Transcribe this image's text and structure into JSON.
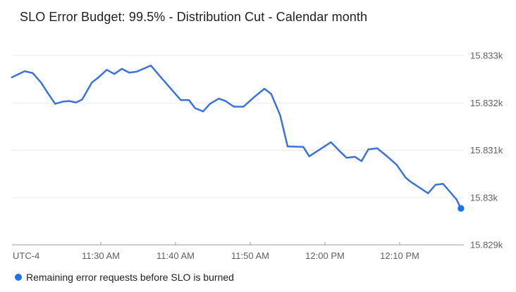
{
  "title": "SLO Error Budget: 99.5% - Distribution Cut - Calendar month",
  "legend": {
    "label": "Remaining error requests before SLO is burned",
    "marker_color": "#1A73E8"
  },
  "colors": {
    "line": "#3B72DB",
    "endpoint_dot": "#1A73E8",
    "gridline": "#EBEBEB",
    "axis_line": "#9AA0A6",
    "axis_text": "#616161",
    "title_text": "#212121",
    "legend_text": "#212121",
    "background": "#FFFFFF"
  },
  "chart_data": {
    "type": "line",
    "title": "SLO Error Budget: 99.5% - Distribution Cut - Calendar month",
    "xlabel": "",
    "ylabel": "",
    "timezone_label": "UTC-4",
    "x_unit": "minutes since 11:00 AM",
    "x_range": [
      18.0,
      78.6
    ],
    "y_range": [
      15829,
      15833
    ],
    "grid": true,
    "legend_position": "bottom",
    "x_ticks": [
      {
        "t": 30,
        "label": "11:30 AM"
      },
      {
        "t": 40,
        "label": "11:40 AM"
      },
      {
        "t": 50,
        "label": "11:50 AM"
      },
      {
        "t": 60,
        "label": "12:00 PM"
      },
      {
        "t": 70,
        "label": "12:10 PM"
      }
    ],
    "y_ticks": [
      {
        "value": 15833,
        "label": "15.833k"
      },
      {
        "value": 15832,
        "label": "15.832k"
      },
      {
        "value": 15831,
        "label": "15.831k"
      },
      {
        "value": 15830,
        "label": "15.83k"
      },
      {
        "value": 15829,
        "label": "15.829k"
      }
    ],
    "series": [
      {
        "name": "Remaining error requests before SLO is burned",
        "endpoint_marker": true,
        "x": [
          18.1,
          19.8,
          20.9,
          22.0,
          22.9,
          23.9,
          25.0,
          25.8,
          26.7,
          27.5,
          28.8,
          29.7,
          30.8,
          31.8,
          32.8,
          33.8,
          34.8,
          36.7,
          38.0,
          40.7,
          41.8,
          42.6,
          43.7,
          44.6,
          45.8,
          46.7,
          47.8,
          49.1,
          50.5,
          51.9,
          52.8,
          54.0,
          55.0,
          57.1,
          57.9,
          60.8,
          62.1,
          62.9,
          64.0,
          64.9,
          65.8,
          67.0,
          68.4,
          69.6,
          70.8,
          71.5,
          73.8,
          74.8,
          75.8,
          77.6,
          78.2
        ],
        "y": [
          15832.54,
          15832.67,
          15832.63,
          15832.43,
          15832.21,
          15831.98,
          15832.03,
          15832.04,
          15832.01,
          15832.07,
          15832.43,
          15832.54,
          15832.7,
          15832.61,
          15832.72,
          15832.64,
          15832.66,
          15832.79,
          15832.55,
          15832.06,
          15832.06,
          15831.89,
          15831.82,
          15831.98,
          15832.09,
          15832.04,
          15831.92,
          15831.92,
          15832.12,
          15832.3,
          15832.19,
          15831.74,
          15831.08,
          15831.07,
          15830.87,
          15831.17,
          15830.96,
          15830.84,
          15830.86,
          15830.77,
          15831.02,
          15831.04,
          15830.86,
          15830.69,
          15830.42,
          15830.33,
          15830.09,
          15830.27,
          15830.29,
          15829.96,
          15829.77
        ]
      }
    ]
  }
}
